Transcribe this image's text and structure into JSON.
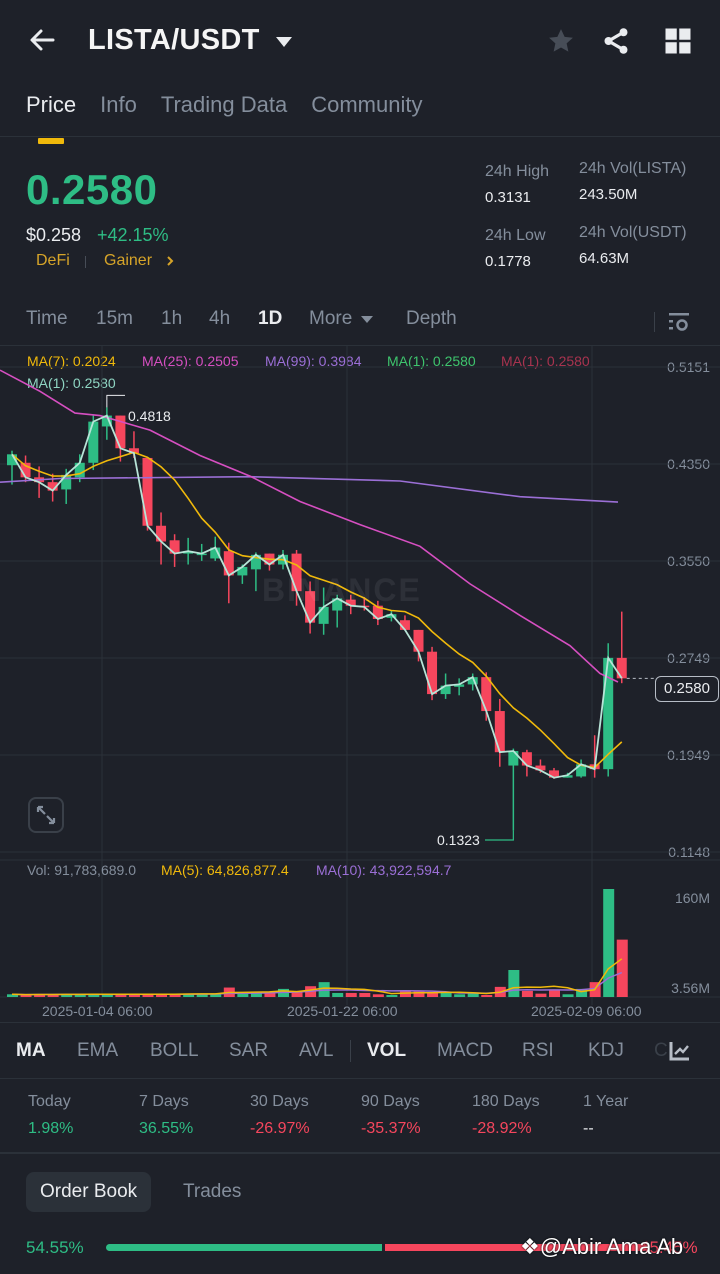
{
  "header": {
    "pair": "LISTA/USDT",
    "icons": [
      "back-arrow-icon",
      "caret-down-icon",
      "star-icon",
      "share-icon",
      "grid-icon"
    ]
  },
  "tabs": [
    {
      "label": "Price",
      "active": true
    },
    {
      "label": "Info",
      "active": false
    },
    {
      "label": "Trading Data",
      "active": false
    },
    {
      "label": "Community",
      "active": false
    }
  ],
  "ticker": {
    "last_price": "0.2580",
    "usd_price": "$0.258",
    "change_pct": "+42.15%",
    "tags": [
      "DeFi",
      "Gainer"
    ],
    "high_label": "24h High",
    "high_value": "0.3131",
    "low_label": "24h Low",
    "low_value": "0.1778",
    "vol_base_label": "24h Vol(LISTA)",
    "vol_base_value": "243.50M",
    "vol_quote_label": "24h Vol(USDT)",
    "vol_quote_value": "64.63M"
  },
  "timeframes": {
    "items": [
      "Time",
      "15m",
      "1h",
      "4h",
      "1D",
      "More",
      "Depth"
    ],
    "active": "1D"
  },
  "ma_legend": {
    "ma7": "MA(7): 0.2024",
    "ma25": "MA(25): 0.2505",
    "ma99": "MA(99): 0.3984",
    "ma1_green": "MA(1): 0.2580",
    "ma1_red": "MA(1): 0.2580",
    "ma1_teal": "MA(1): 0.2580"
  },
  "colors": {
    "up": "#2ebd85",
    "down": "#f6465d",
    "ma7": "#f0b90b",
    "ma25": "#d64fc1",
    "ma99": "#9b6fd6",
    "ma1": "#b7e4d7",
    "accent": "#f0b90b",
    "bg": "#1e2129"
  },
  "chart_data": {
    "type": "candlestick",
    "title": "LISTA/USDT 1D",
    "y_ticks": [
      "0.5151",
      "0.4350",
      "0.3550",
      "0.2749",
      "0.1949",
      "0.1148"
    ],
    "ylim": [
      0.1148,
      0.5151
    ],
    "x_ticks": [
      "2025-01-04 06:00",
      "2025-01-22 06:00",
      "2025-02-09 06:00"
    ],
    "annotations": {
      "high": "0.4818",
      "low": "0.1323",
      "current": "0.2580"
    },
    "candles": [
      {
        "o": 0.434,
        "h": 0.446,
        "l": 0.418,
        "c": 0.443
      },
      {
        "o": 0.436,
        "h": 0.442,
        "l": 0.42,
        "c": 0.424
      },
      {
        "o": 0.424,
        "h": 0.433,
        "l": 0.407,
        "c": 0.42
      },
      {
        "o": 0.42,
        "h": 0.427,
        "l": 0.404,
        "c": 0.413
      },
      {
        "o": 0.414,
        "h": 0.431,
        "l": 0.402,
        "c": 0.426
      },
      {
        "o": 0.424,
        "h": 0.443,
        "l": 0.42,
        "c": 0.436
      },
      {
        "o": 0.436,
        "h": 0.475,
        "l": 0.43,
        "c": 0.47
      },
      {
        "o": 0.466,
        "h": 0.4818,
        "l": 0.455,
        "c": 0.475
      },
      {
        "o": 0.475,
        "h": 0.475,
        "l": 0.437,
        "c": 0.448
      },
      {
        "o": 0.448,
        "h": 0.462,
        "l": 0.44,
        "c": 0.444
      },
      {
        "o": 0.44,
        "h": 0.44,
        "l": 0.38,
        "c": 0.384
      },
      {
        "o": 0.384,
        "h": 0.395,
        "l": 0.352,
        "c": 0.371
      },
      {
        "o": 0.372,
        "h": 0.377,
        "l": 0.35,
        "c": 0.361
      },
      {
        "o": 0.361,
        "h": 0.374,
        "l": 0.352,
        "c": 0.363
      },
      {
        "o": 0.361,
        "h": 0.369,
        "l": 0.355,
        "c": 0.361
      },
      {
        "o": 0.357,
        "h": 0.375,
        "l": 0.355,
        "c": 0.366
      },
      {
        "o": 0.363,
        "h": 0.37,
        "l": 0.32,
        "c": 0.343
      },
      {
        "o": 0.343,
        "h": 0.352,
        "l": 0.336,
        "c": 0.35
      },
      {
        "o": 0.348,
        "h": 0.362,
        "l": 0.33,
        "c": 0.36
      },
      {
        "o": 0.361,
        "h": 0.361,
        "l": 0.347,
        "c": 0.352
      },
      {
        "o": 0.352,
        "h": 0.364,
        "l": 0.348,
        "c": 0.36
      },
      {
        "o": 0.361,
        "h": 0.364,
        "l": 0.318,
        "c": 0.33
      },
      {
        "o": 0.33,
        "h": 0.338,
        "l": 0.295,
        "c": 0.304
      },
      {
        "o": 0.303,
        "h": 0.333,
        "l": 0.294,
        "c": 0.317
      },
      {
        "o": 0.314,
        "h": 0.327,
        "l": 0.3,
        "c": 0.324
      },
      {
        "o": 0.323,
        "h": 0.327,
        "l": 0.311,
        "c": 0.318
      },
      {
        "o": 0.318,
        "h": 0.325,
        "l": 0.314,
        "c": 0.317
      },
      {
        "o": 0.318,
        "h": 0.322,
        "l": 0.302,
        "c": 0.307
      },
      {
        "o": 0.308,
        "h": 0.314,
        "l": 0.305,
        "c": 0.311
      },
      {
        "o": 0.306,
        "h": 0.31,
        "l": 0.298,
        "c": 0.298
      },
      {
        "o": 0.298,
        "h": 0.298,
        "l": 0.272,
        "c": 0.28
      },
      {
        "o": 0.28,
        "h": 0.284,
        "l": 0.24,
        "c": 0.245
      },
      {
        "o": 0.245,
        "h": 0.262,
        "l": 0.241,
        "c": 0.252
      },
      {
        "o": 0.251,
        "h": 0.258,
        "l": 0.244,
        "c": 0.253
      },
      {
        "o": 0.253,
        "h": 0.262,
        "l": 0.248,
        "c": 0.259
      },
      {
        "o": 0.259,
        "h": 0.263,
        "l": 0.223,
        "c": 0.231
      },
      {
        "o": 0.231,
        "h": 0.241,
        "l": 0.185,
        "c": 0.197
      },
      {
        "o": 0.186,
        "h": 0.2,
        "l": 0.1323,
        "c": 0.198
      },
      {
        "o": 0.197,
        "h": 0.199,
        "l": 0.177,
        "c": 0.186
      },
      {
        "o": 0.186,
        "h": 0.191,
        "l": 0.18,
        "c": 0.182
      },
      {
        "o": 0.182,
        "h": 0.184,
        "l": 0.175,
        "c": 0.176
      },
      {
        "o": 0.176,
        "h": 0.18,
        "l": 0.176,
        "c": 0.178
      },
      {
        "o": 0.177,
        "h": 0.191,
        "l": 0.176,
        "c": 0.187
      },
      {
        "o": 0.187,
        "h": 0.211,
        "l": 0.176,
        "c": 0.183
      },
      {
        "o": 0.183,
        "h": 0.287,
        "l": 0.177,
        "c": 0.2749
      },
      {
        "o": 0.2749,
        "h": 0.3131,
        "l": 0.254,
        "c": 0.258
      }
    ],
    "ma99_line": [
      [
        0.421,
        0
      ],
      [
        0.424,
        8
      ],
      [
        0.4248,
        20
      ],
      [
        0.42,
        32
      ],
      [
        0.408,
        42
      ],
      [
        0.401,
        45
      ]
    ],
    "volume": {
      "legend": {
        "vol": "Vol: 91,783,689.0",
        "ma5": "MA(5): 64,826,877.4",
        "ma10": "MA(10): 43,922,594.7"
      },
      "y_ticks": [
        "160M",
        "3.56M"
      ],
      "bars": [
        4,
        3,
        4,
        4,
        4,
        4,
        4,
        4,
        4,
        4,
        5,
        4,
        4,
        5,
        5,
        5,
        14,
        5,
        7,
        7,
        12,
        9,
        16,
        22,
        6,
        6,
        6,
        4,
        3,
        10,
        8,
        6,
        7,
        4,
        6,
        3,
        15,
        40,
        9,
        5,
        10,
        4,
        12,
        22,
        160,
        85
      ]
    }
  },
  "chart_ui": {
    "expand_icon": "expand-arrows-icon",
    "settings_icon": "chart-settings-icon",
    "current_price_label": "0.2580",
    "high_marker": "0.4818",
    "low_marker": "0.1323",
    "watermark": "BINANCE"
  },
  "indicators": {
    "items": [
      "MA",
      "EMA",
      "BOLL",
      "SAR",
      "AVL",
      "VOL",
      "MACD",
      "RSI",
      "KDJ",
      "C"
    ],
    "active": [
      "MA",
      "VOL"
    ]
  },
  "performance": [
    {
      "label": "Today",
      "value": "1.98%",
      "dir": "up"
    },
    {
      "label": "7 Days",
      "value": "36.55%",
      "dir": "up"
    },
    {
      "label": "30 Days",
      "value": "-26.97%",
      "dir": "down"
    },
    {
      "label": "90 Days",
      "value": "-35.37%",
      "dir": "down"
    },
    {
      "label": "180 Days",
      "value": "-28.92%",
      "dir": "down"
    },
    {
      "label": "1 Year",
      "value": "--",
      "dir": "none"
    }
  ],
  "orderbook": {
    "tabs": [
      "Order Book",
      "Trades"
    ],
    "active": "Order Book",
    "buy_pct": "54.55%",
    "sell_pct": "45.45%"
  },
  "watermark": "@Abir Ama Ab"
}
